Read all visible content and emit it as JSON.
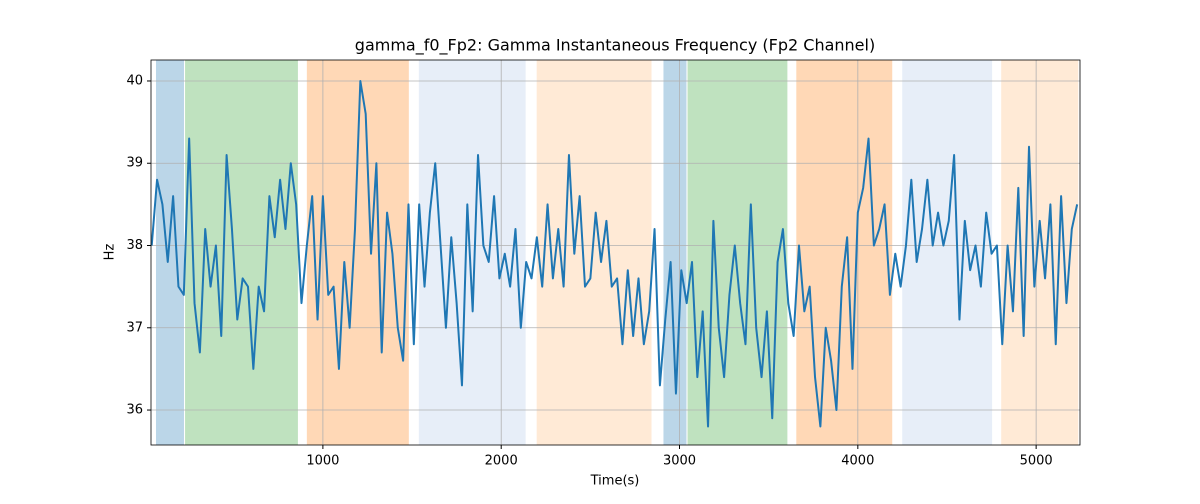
{
  "chart_data": {
    "type": "line",
    "title": "gamma_f0_Fp2: Gamma Instantaneous Frequency (Fp2 Channel)",
    "x_label": "Time(s)",
    "y_label": "Hz",
    "xlim": [
      36,
      5246
    ],
    "ylim": [
      35.575,
      40.255
    ],
    "xticks": [
      1000,
      2000,
      3000,
      4000,
      5000
    ],
    "yticks": [
      36,
      37,
      38,
      39,
      40
    ],
    "grid": true,
    "spans": [
      {
        "start": 64,
        "end": 221,
        "color": "#1f77b4",
        "opacity": 0.3
      },
      {
        "start": 227,
        "end": 860,
        "color": "#2ca02c",
        "opacity": 0.3
      },
      {
        "start": 910,
        "end": 1482,
        "color": "#ff7f0e",
        "opacity": 0.3
      },
      {
        "start": 1538,
        "end": 2137,
        "color": "#aec7e8",
        "opacity": 0.3
      },
      {
        "start": 2199,
        "end": 2843,
        "color": "#ffbb78",
        "opacity": 0.3
      },
      {
        "start": 2910,
        "end": 3039,
        "color": "#1f77b4",
        "opacity": 0.3
      },
      {
        "start": 3045,
        "end": 3605,
        "color": "#2ca02c",
        "opacity": 0.3
      },
      {
        "start": 3655,
        "end": 4193,
        "color": "#ff7f0e",
        "opacity": 0.3
      },
      {
        "start": 4249,
        "end": 4753,
        "color": "#aec7e8",
        "opacity": 0.3
      },
      {
        "start": 4804,
        "end": 5236,
        "color": "#ffbb78",
        "opacity": 0.3
      }
    ],
    "x": [
      40,
      70,
      100,
      130,
      160,
      190,
      220,
      250,
      280,
      310,
      340,
      370,
      400,
      430,
      460,
      490,
      520,
      550,
      580,
      610,
      640,
      670,
      700,
      730,
      760,
      790,
      820,
      850,
      880,
      910,
      940,
      970,
      1000,
      1030,
      1060,
      1090,
      1120,
      1150,
      1180,
      1210,
      1240,
      1270,
      1300,
      1330,
      1360,
      1390,
      1420,
      1450,
      1480,
      1510,
      1540,
      1570,
      1600,
      1630,
      1660,
      1690,
      1720,
      1750,
      1780,
      1810,
      1840,
      1870,
      1900,
      1930,
      1960,
      1990,
      2020,
      2050,
      2080,
      2110,
      2140,
      2170,
      2200,
      2230,
      2260,
      2290,
      2320,
      2350,
      2380,
      2410,
      2440,
      2470,
      2500,
      2530,
      2560,
      2590,
      2620,
      2650,
      2680,
      2710,
      2740,
      2770,
      2800,
      2830,
      2860,
      2890,
      2920,
      2950,
      2980,
      3010,
      3040,
      3070,
      3100,
      3130,
      3160,
      3190,
      3220,
      3250,
      3280,
      3310,
      3340,
      3370,
      3400,
      3430,
      3460,
      3490,
      3520,
      3550,
      3580,
      3610,
      3640,
      3670,
      3700,
      3730,
      3760,
      3790,
      3820,
      3850,
      3880,
      3910,
      3940,
      3970,
      4000,
      4030,
      4060,
      4090,
      4120,
      4150,
      4180,
      4210,
      4240,
      4270,
      4300,
      4330,
      4360,
      4390,
      4420,
      4450,
      4480,
      4510,
      4540,
      4570,
      4600,
      4630,
      4660,
      4690,
      4720,
      4750,
      4780,
      4810,
      4840,
      4870,
      4900,
      4930,
      4960,
      4990,
      5020,
      5050,
      5080,
      5110,
      5140,
      5170,
      5200,
      5230
    ],
    "series": [
      {
        "color": "#1f77b4",
        "values": [
          38.0,
          38.8,
          38.5,
          37.8,
          38.6,
          37.5,
          37.4,
          39.3,
          37.3,
          36.7,
          38.2,
          37.5,
          38.0,
          36.9,
          39.1,
          38.2,
          37.1,
          37.6,
          37.5,
          36.5,
          37.5,
          37.2,
          38.6,
          38.1,
          38.8,
          38.2,
          39.0,
          38.5,
          37.3,
          38.0,
          38.6,
          37.1,
          38.6,
          37.4,
          37.5,
          36.5,
          37.8,
          37.0,
          38.2,
          40.0,
          39.6,
          37.9,
          39.0,
          36.7,
          38.4,
          37.9,
          37.0,
          36.6,
          38.5,
          36.8,
          38.5,
          37.5,
          38.4,
          39.0,
          38.0,
          37.0,
          38.1,
          37.3,
          36.3,
          38.5,
          37.2,
          39.1,
          38.0,
          37.8,
          38.6,
          37.6,
          37.9,
          37.5,
          38.2,
          37.0,
          37.8,
          37.6,
          38.1,
          37.5,
          38.5,
          37.6,
          38.2,
          37.5,
          39.1,
          37.9,
          38.6,
          37.5,
          37.6,
          38.4,
          37.8,
          38.3,
          37.5,
          37.6,
          36.8,
          37.7,
          36.9,
          37.6,
          36.8,
          37.2,
          38.2,
          36.3,
          37.1,
          37.8,
          36.2,
          37.7,
          37.3,
          37.8,
          36.4,
          37.2,
          35.8,
          38.3,
          37.0,
          36.4,
          37.4,
          38.0,
          37.3,
          36.8,
          38.5,
          37.0,
          36.4,
          37.2,
          35.9,
          37.8,
          38.2,
          37.3,
          36.9,
          38.0,
          37.2,
          37.5,
          36.4,
          35.8,
          37.0,
          36.6,
          36.0,
          37.5,
          38.1,
          36.5,
          38.4,
          38.7,
          39.3,
          38.0,
          38.2,
          38.5,
          37.4,
          37.9,
          37.5,
          38.0,
          38.8,
          37.8,
          38.2,
          38.8,
          38.0,
          38.4,
          38.0,
          38.3,
          39.1,
          37.1,
          38.3,
          37.7,
          38.0,
          37.5,
          38.4,
          37.9,
          38.0,
          36.8,
          38.0,
          37.2,
          38.7,
          36.9,
          39.2,
          37.5,
          38.3,
          37.6,
          38.5,
          36.8,
          38.6,
          37.3,
          38.2,
          38.5
        ]
      }
    ]
  }
}
